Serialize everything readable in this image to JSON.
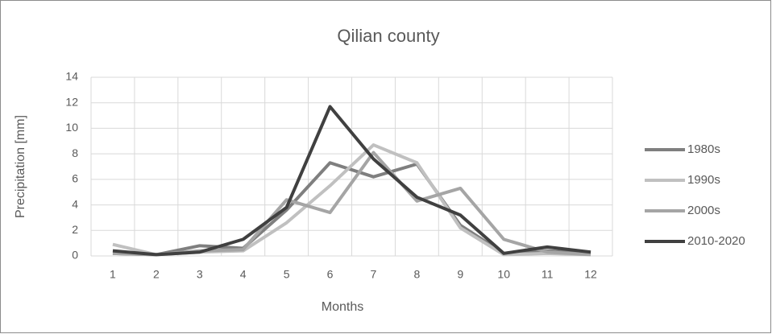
{
  "chart_data": {
    "type": "line",
    "title": "Qilian county",
    "x_label": "Months",
    "y_label": "Precipitation [mm]",
    "categories": [
      "1",
      "2",
      "3",
      "4",
      "5",
      "6",
      "7",
      "8",
      "9",
      "10",
      "11",
      "12"
    ],
    "series": [
      {
        "name": "1980s",
        "color": "#7f7f7f",
        "values": [
          0.2,
          0.1,
          0.8,
          0.6,
          3.6,
          7.3,
          6.2,
          7.2,
          2.4,
          0.2,
          0.4,
          0.2
        ]
      },
      {
        "name": "1990s",
        "color": "#c0c0c0",
        "values": [
          0.9,
          0.1,
          0.3,
          0.4,
          2.6,
          5.5,
          8.7,
          7.3,
          2.2,
          0.1,
          0.2,
          0.1
        ]
      },
      {
        "name": "2000s",
        "color": "#a5a5a5",
        "values": [
          0.2,
          0.1,
          0.4,
          0.5,
          4.4,
          3.4,
          8.1,
          4.3,
          5.3,
          1.3,
          0.3,
          0.1
        ]
      },
      {
        "name": "2010-2020",
        "color": "#404040",
        "values": [
          0.4,
          0.1,
          0.3,
          1.3,
          3.8,
          11.7,
          7.6,
          4.6,
          3.2,
          0.2,
          0.7,
          0.3
        ]
      }
    ],
    "ylim": [
      0,
      14
    ],
    "yticks": [
      0,
      2,
      4,
      6,
      8,
      10,
      12,
      14
    ],
    "grid": true,
    "legend": "right"
  }
}
